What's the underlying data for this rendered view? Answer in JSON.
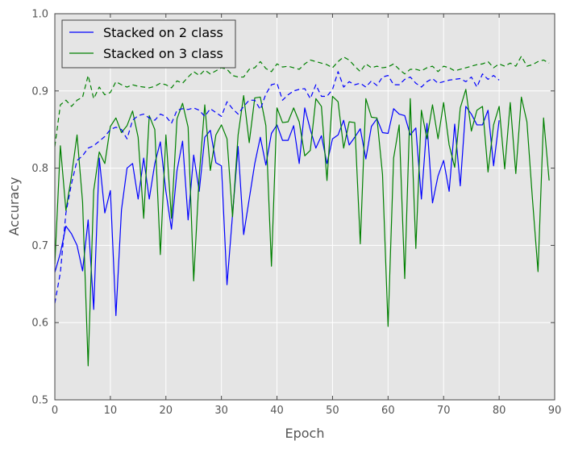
{
  "chart_data": {
    "type": "line",
    "xlabel": "Epoch",
    "ylabel": "Accuracy",
    "xlim": [
      0,
      90
    ],
    "ylim": [
      0.5,
      1.0
    ],
    "x_ticks": [
      0,
      10,
      20,
      30,
      40,
      50,
      60,
      70,
      80,
      90
    ],
    "x_tick_labels": [
      "0",
      "10",
      "20",
      "30",
      "40",
      "50",
      "60",
      "70",
      "80",
      "90"
    ],
    "y_ticks": [
      0.5,
      0.6,
      0.7,
      0.8,
      0.9,
      1.0
    ],
    "y_tick_labels": [
      "0.5",
      "0.6",
      "0.7",
      "0.8",
      "0.9",
      "1.0"
    ],
    "grid": true,
    "background_color": "#e5e5e5",
    "legend_placement": "top-left",
    "legend": [
      {
        "label": "Stacked on 2 class",
        "color": "#0000ff"
      },
      {
        "label": "Stacked on 3 class",
        "color": "#008000"
      }
    ],
    "series": [
      {
        "name": "Stacked on 2 class",
        "style": "solid",
        "color": "#0000ff",
        "x": [
          0,
          1,
          2,
          3,
          4,
          5,
          6,
          7,
          8,
          9,
          10,
          11,
          12,
          13,
          14,
          15,
          16,
          17,
          18,
          19,
          20,
          21,
          22,
          23,
          24,
          25,
          26,
          27,
          28,
          29,
          30,
          31,
          32,
          33,
          34,
          35,
          36,
          37,
          38,
          39,
          40,
          41,
          42,
          43,
          44,
          45,
          46,
          47,
          48,
          49,
          50,
          51,
          52,
          53,
          54,
          55,
          56,
          57,
          58,
          59,
          60,
          61,
          62,
          63,
          64,
          65,
          66,
          67,
          68,
          69,
          70,
          71,
          72,
          73,
          74,
          75,
          76,
          77,
          78,
          79,
          80
        ],
        "y": [
          0.665,
          0.69,
          0.725,
          0.715,
          0.7,
          0.667,
          0.733,
          0.617,
          0.813,
          0.742,
          0.771,
          0.609,
          0.746,
          0.8,
          0.806,
          0.76,
          0.813,
          0.76,
          0.806,
          0.834,
          0.77,
          0.721,
          0.797,
          0.835,
          0.733,
          0.817,
          0.77,
          0.84,
          0.849,
          0.807,
          0.803,
          0.649,
          0.74,
          0.828,
          0.714,
          0.76,
          0.806,
          0.84,
          0.804,
          0.845,
          0.856,
          0.836,
          0.836,
          0.855,
          0.806,
          0.878,
          0.85,
          0.826,
          0.842,
          0.806,
          0.838,
          0.843,
          0.862,
          0.83,
          0.84,
          0.851,
          0.812,
          0.854,
          0.864,
          0.846,
          0.845,
          0.877,
          0.87,
          0.868,
          0.843,
          0.852,
          0.76,
          0.858,
          0.755,
          0.79,
          0.81,
          0.77,
          0.857,
          0.777,
          0.88,
          0.87,
          0.856,
          0.856,
          0.875,
          0.803,
          0.862
        ]
      },
      {
        "name": "Stacked on 3 class",
        "style": "solid",
        "color": "#008000",
        "x": [
          0,
          1,
          2,
          3,
          4,
          5,
          6,
          7,
          8,
          9,
          10,
          11,
          12,
          13,
          14,
          15,
          16,
          17,
          18,
          19,
          20,
          21,
          22,
          23,
          24,
          25,
          26,
          27,
          28,
          29,
          30,
          31,
          32,
          33,
          34,
          35,
          36,
          37,
          38,
          39,
          40,
          41,
          42,
          43,
          44,
          45,
          46,
          47,
          48,
          49,
          50,
          51,
          52,
          53,
          54,
          55,
          56,
          57,
          58,
          59,
          60,
          61,
          62,
          63,
          64,
          65,
          66,
          67,
          68,
          69,
          70,
          71,
          72,
          73,
          74,
          75,
          76,
          77,
          78,
          79,
          80,
          81,
          82,
          83,
          84,
          85,
          86,
          87,
          88,
          89
        ],
        "y": [
          0.676,
          0.829,
          0.745,
          0.79,
          0.843,
          0.756,
          0.544,
          0.771,
          0.821,
          0.806,
          0.854,
          0.865,
          0.846,
          0.855,
          0.874,
          0.84,
          0.735,
          0.868,
          0.85,
          0.688,
          0.843,
          0.735,
          0.864,
          0.884,
          0.853,
          0.654,
          0.79,
          0.882,
          0.797,
          0.843,
          0.856,
          0.838,
          0.737,
          0.843,
          0.894,
          0.833,
          0.891,
          0.892,
          0.855,
          0.673,
          0.878,
          0.859,
          0.86,
          0.878,
          0.86,
          0.816,
          0.823,
          0.89,
          0.88,
          0.784,
          0.893,
          0.886,
          0.826,
          0.86,
          0.859,
          0.702,
          0.89,
          0.866,
          0.865,
          0.792,
          0.595,
          0.813,
          0.856,
          0.657,
          0.89,
          0.696,
          0.875,
          0.838,
          0.882,
          0.838,
          0.885,
          0.83,
          0.801,
          0.878,
          0.902,
          0.848,
          0.875,
          0.88,
          0.795,
          0.856,
          0.88,
          0.799,
          0.885,
          0.793,
          0.892,
          0.86,
          0.76,
          0.666,
          0.865,
          0.784
        ]
      },
      {
        "name": "",
        "style": "dashed",
        "color": "#0000ff",
        "x": [
          0,
          1,
          2,
          3,
          4,
          5,
          6,
          7,
          8,
          9,
          10,
          11,
          12,
          13,
          14,
          15,
          16,
          17,
          18,
          19,
          20,
          21,
          22,
          23,
          24,
          25,
          26,
          27,
          28,
          29,
          30,
          31,
          32,
          33,
          34,
          35,
          36,
          37,
          38,
          39,
          40,
          41,
          42,
          43,
          44,
          45,
          46,
          47,
          48,
          49,
          50,
          51,
          52,
          53,
          54,
          55,
          56,
          57,
          58,
          59,
          60,
          61,
          62,
          63,
          64,
          65,
          66,
          67,
          68,
          69,
          70,
          71,
          72,
          73,
          74,
          75,
          76,
          77,
          78,
          79,
          80
        ],
        "y": [
          0.625,
          0.665,
          0.742,
          0.78,
          0.81,
          0.816,
          0.826,
          0.829,
          0.835,
          0.841,
          0.85,
          0.853,
          0.85,
          0.838,
          0.862,
          0.868,
          0.87,
          0.865,
          0.862,
          0.87,
          0.867,
          0.858,
          0.875,
          0.877,
          0.876,
          0.878,
          0.875,
          0.867,
          0.877,
          0.872,
          0.867,
          0.886,
          0.877,
          0.87,
          0.88,
          0.888,
          0.888,
          0.876,
          0.896,
          0.908,
          0.91,
          0.888,
          0.895,
          0.9,
          0.902,
          0.903,
          0.89,
          0.908,
          0.893,
          0.893,
          0.902,
          0.925,
          0.905,
          0.912,
          0.908,
          0.91,
          0.905,
          0.913,
          0.907,
          0.918,
          0.92,
          0.908,
          0.908,
          0.915,
          0.918,
          0.91,
          0.905,
          0.912,
          0.916,
          0.91,
          0.912,
          0.914,
          0.915,
          0.916,
          0.912,
          0.918,
          0.905,
          0.922,
          0.915,
          0.92,
          0.914
        ]
      },
      {
        "name": "",
        "style": "dashed",
        "color": "#008000",
        "x": [
          0,
          1,
          2,
          3,
          4,
          5,
          6,
          7,
          8,
          9,
          10,
          11,
          12,
          13,
          14,
          15,
          16,
          17,
          18,
          19,
          20,
          21,
          22,
          23,
          24,
          25,
          26,
          27,
          28,
          29,
          30,
          31,
          32,
          33,
          34,
          35,
          36,
          37,
          38,
          39,
          40,
          41,
          42,
          43,
          44,
          45,
          46,
          47,
          48,
          49,
          50,
          51,
          52,
          53,
          54,
          55,
          56,
          57,
          58,
          59,
          60,
          61,
          62,
          63,
          64,
          65,
          66,
          67,
          68,
          69,
          70,
          71,
          72,
          73,
          74,
          75,
          76,
          77,
          78,
          79,
          80,
          81,
          82,
          83,
          84,
          85,
          86,
          87,
          88,
          89
        ],
        "y": [
          0.828,
          0.882,
          0.888,
          0.88,
          0.888,
          0.892,
          0.92,
          0.89,
          0.905,
          0.895,
          0.898,
          0.912,
          0.908,
          0.905,
          0.908,
          0.906,
          0.905,
          0.904,
          0.906,
          0.91,
          0.908,
          0.904,
          0.913,
          0.91,
          0.918,
          0.925,
          0.92,
          0.927,
          0.922,
          0.926,
          0.93,
          0.928,
          0.92,
          0.918,
          0.918,
          0.928,
          0.93,
          0.938,
          0.929,
          0.925,
          0.935,
          0.931,
          0.932,
          0.93,
          0.928,
          0.935,
          0.94,
          0.938,
          0.936,
          0.934,
          0.93,
          0.938,
          0.944,
          0.94,
          0.932,
          0.925,
          0.935,
          0.93,
          0.932,
          0.93,
          0.931,
          0.935,
          0.928,
          0.922,
          0.928,
          0.928,
          0.926,
          0.93,
          0.932,
          0.925,
          0.932,
          0.93,
          0.926,
          0.928,
          0.93,
          0.932,
          0.934,
          0.935,
          0.938,
          0.93,
          0.935,
          0.932,
          0.936,
          0.932,
          0.945,
          0.932,
          0.934,
          0.938,
          0.94,
          0.936
        ]
      }
    ]
  }
}
